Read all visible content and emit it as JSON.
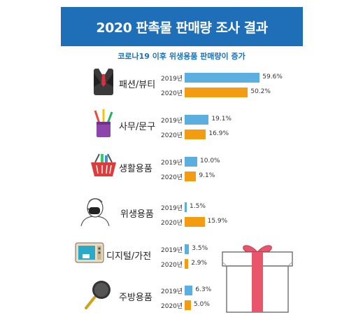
{
  "header": {
    "title": "2020 판촉물 판매량 조사 결과"
  },
  "subtitle": "코로나19 이후 위생용품 판매량이 증가",
  "colors": {
    "header_bg": "#1f6fb8",
    "bar_2019": "#5aaee0",
    "bar_2020": "#f39c12"
  },
  "chart_data": {
    "type": "bar",
    "orientation": "horizontal",
    "title": "2020 판촉물 판매량 조사 결과",
    "subtitle": "코로나19 이후 위생용품 판매량이 증가",
    "categories": [
      "패션/뷰티",
      "사무/문구",
      "생활용품",
      "위생용품",
      "디지털/가전",
      "주방용품"
    ],
    "series": [
      {
        "name": "2019년",
        "values": [
          59.6,
          19.1,
          10.0,
          1.5,
          3.5,
          6.3
        ],
        "labels": [
          "59.6%",
          "19.1%",
          "10.0%",
          "1.5%",
          "3.5%",
          "6.3%"
        ],
        "color": "#5aaee0"
      },
      {
        "name": "2020년",
        "values": [
          50.2,
          16.9,
          9.1,
          15.9,
          2.9,
          5.0
        ],
        "labels": [
          "50.2%",
          "16.9%",
          "9.1%",
          "15.9%",
          "2.9%",
          "5.0%"
        ],
        "color": "#f39c12"
      }
    ],
    "icons": [
      "suit-icon",
      "pen-cup-icon",
      "basket-icon",
      "masked-face-icon",
      "microwave-icon",
      "frying-pan-icon"
    ],
    "unit": "%",
    "grid": false
  }
}
